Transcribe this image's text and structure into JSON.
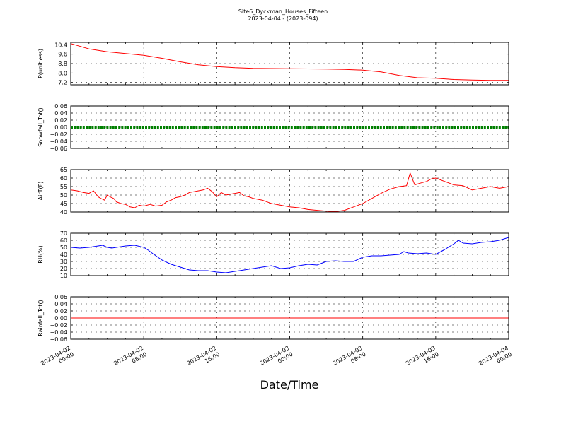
{
  "figure": {
    "title": "Site6_Dyckman_Houses_Fifteen",
    "subtitle": "2023-04-04 - (2023-094)",
    "xlabel": "Date/Time",
    "x_ticks": [
      {
        "line1": "2023-04-02",
        "line2": "00:00",
        "t": 0
      },
      {
        "line1": "2023-04-02",
        "line2": "08:00",
        "t": 8
      },
      {
        "line1": "2023-04-02",
        "line2": "16:00",
        "t": 16
      },
      {
        "line1": "2023-04-03",
        "line2": "00:00",
        "t": 24
      },
      {
        "line1": "2023-04-03",
        "line2": "08:00",
        "t": 32
      },
      {
        "line1": "2023-04-03",
        "line2": "16:00",
        "t": 40
      },
      {
        "line1": "2023-04-04",
        "line2": "00:00",
        "t": 48
      }
    ]
  },
  "chart_data": [
    {
      "type": "line",
      "ylabel": "P(unitless)",
      "ylim": [
        7.0,
        10.6
      ],
      "yticks": [
        "10.4",
        "9.6",
        "8.8",
        "8.0",
        "7.2"
      ],
      "grid": true,
      "series": [
        {
          "color": "#ff0000",
          "x": [
            0,
            2,
            4,
            6,
            8,
            10,
            12,
            14,
            16,
            18,
            20,
            22,
            24,
            26,
            28,
            30,
            32,
            34,
            36,
            38,
            40,
            42,
            44,
            46,
            48
          ],
          "y": [
            10.5,
            10.05,
            9.8,
            9.65,
            9.5,
            9.25,
            8.95,
            8.7,
            8.55,
            8.45,
            8.4,
            8.38,
            8.36,
            8.35,
            8.33,
            8.3,
            8.25,
            8.1,
            7.8,
            7.6,
            7.55,
            7.45,
            7.4,
            7.38,
            7.38
          ]
        }
      ]
    },
    {
      "type": "line",
      "ylabel": "Snowfall_Tot()",
      "ylim": [
        -0.06,
        0.06
      ],
      "yticks": [
        "0.06",
        "0.04",
        "0.02",
        "0.00",
        "−0.02",
        "−0.04",
        "−0.06"
      ],
      "grid": true,
      "series": [
        {
          "color": "#008000",
          "style": "thick-dotted",
          "x": [
            0,
            48
          ],
          "y": [
            0,
            0
          ]
        }
      ]
    },
    {
      "type": "line",
      "ylabel": "AirT(F)",
      "ylim": [
        40,
        65
      ],
      "yticks": [
        "65",
        "60",
        "55",
        "50",
        "45",
        "40"
      ],
      "grid": true,
      "series": [
        {
          "color": "#ff0000",
          "x": [
            0,
            0.7,
            1.4,
            2,
            2.5,
            3,
            3.3,
            3.7,
            4,
            4.3,
            4.7,
            5,
            5.5,
            6,
            6.5,
            7,
            7.5,
            8,
            8.7,
            9.3,
            10,
            10.5,
            11,
            11.5,
            12,
            12.5,
            13,
            13.5,
            14,
            14.5,
            15,
            15.5,
            16,
            16.5,
            17,
            17.5,
            18,
            18.5,
            19,
            19.5,
            20,
            21,
            22,
            23,
            24,
            25,
            26,
            27,
            28,
            29,
            30,
            31,
            32,
            33,
            34,
            35,
            36,
            36.8,
            37.2,
            37.7,
            38.3,
            39,
            39.5,
            40,
            40.5,
            41,
            41.5,
            42,
            43,
            44,
            45,
            46,
            46.5,
            47,
            48
          ],
          "y": [
            53,
            52.5,
            51.5,
            51,
            52.5,
            49,
            48,
            47,
            50,
            49,
            48,
            46,
            45,
            44.5,
            43,
            42.5,
            44,
            43.5,
            44.5,
            43.5,
            44,
            46,
            47,
            48.5,
            49,
            50,
            51.5,
            52,
            52.5,
            53,
            54,
            52,
            49,
            51.5,
            50,
            50.5,
            51,
            51.5,
            49.5,
            49,
            48,
            47,
            45,
            44,
            43,
            42.5,
            41.5,
            41,
            40.5,
            40.2,
            41,
            43,
            45,
            48,
            51,
            53.5,
            55,
            55.5,
            63,
            56,
            57,
            58,
            59.5,
            60,
            59,
            58,
            57,
            56,
            55.5,
            53,
            54,
            55,
            54.5,
            54,
            55
          ]
        }
      ]
    },
    {
      "type": "line",
      "ylabel": "RH(%)",
      "ylim": [
        10,
        70
      ],
      "yticks": [
        "70",
        "60",
        "50",
        "40",
        "30",
        "20",
        "10"
      ],
      "grid": true,
      "series": [
        {
          "color": "#0000ff",
          "x": [
            0,
            1,
            2,
            3,
            3.5,
            4,
            4.5,
            5,
            6,
            7,
            8,
            8.5,
            9,
            10,
            11,
            12,
            13,
            14,
            15,
            16,
            17,
            18,
            19,
            20,
            21,
            22,
            23,
            24,
            25,
            26,
            27,
            28,
            29,
            30,
            31,
            32,
            33,
            34,
            35,
            36,
            36.5,
            37,
            38,
            39,
            40,
            41,
            42,
            42.5,
            43,
            44,
            45,
            46,
            47,
            48
          ],
          "y": [
            50,
            49,
            50,
            52,
            53,
            50,
            49,
            50,
            52,
            53,
            50,
            46,
            41,
            32,
            26,
            22,
            18,
            17,
            17,
            15,
            14,
            16,
            18,
            20,
            22,
            24,
            20,
            21,
            24,
            26,
            25,
            30,
            31,
            30,
            30,
            36,
            38,
            38,
            39,
            40,
            44,
            42,
            41,
            42,
            40,
            47,
            55,
            60,
            56,
            55,
            57,
            58,
            60,
            64
          ]
        }
      ]
    },
    {
      "type": "line",
      "ylabel": "Rainfall_Tot()",
      "ylim": [
        -0.06,
        0.06
      ],
      "yticks": [
        "0.06",
        "0.04",
        "0.02",
        "0.00",
        "−0.02",
        "−0.04",
        "−0.06"
      ],
      "grid": true,
      "series": [
        {
          "color": "#ff0000",
          "x": [
            0,
            48
          ],
          "y": [
            0,
            0
          ]
        }
      ]
    }
  ]
}
